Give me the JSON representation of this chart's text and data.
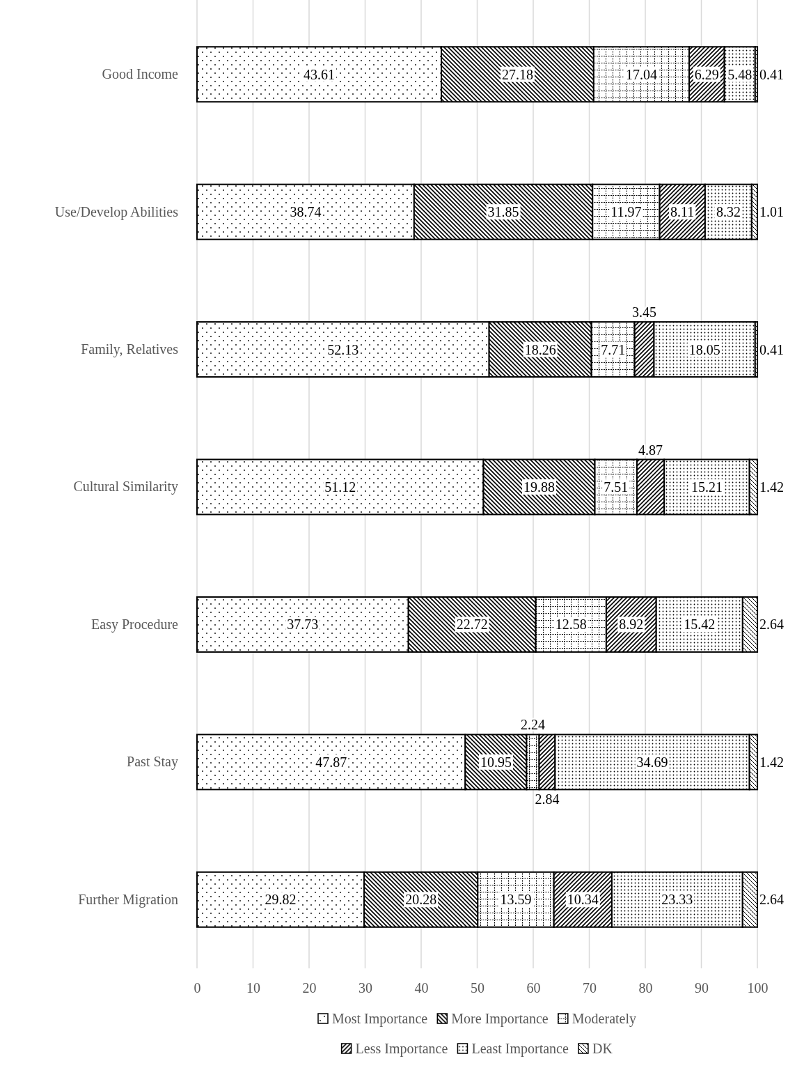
{
  "chart_data": {
    "type": "bar",
    "orientation": "horizontal",
    "stacked": true,
    "categories": [
      "Good Income",
      "Use/Develop Abilities",
      "Family, Relatives",
      "Cultural Similarity",
      "Easy Procedure",
      "Past Stay",
      "Further Migration"
    ],
    "series": [
      {
        "name": "Most Importance",
        "color": "#000000",
        "values": [
          43.61,
          38.74,
          52.13,
          51.12,
          37.73,
          47.87,
          29.82
        ]
      },
      {
        "name": "More Importance",
        "color": "#000000",
        "values": [
          27.18,
          31.85,
          18.26,
          19.88,
          22.72,
          10.95,
          20.28
        ]
      },
      {
        "name": "Moderately",
        "color": "#000000",
        "values": [
          17.04,
          11.97,
          7.71,
          7.51,
          12.58,
          2.24,
          13.59
        ]
      },
      {
        "name": "Less Importance",
        "color": "#000000",
        "values": [
          6.29,
          8.11,
          3.45,
          4.87,
          8.92,
          2.84,
          10.34
        ]
      },
      {
        "name": "Least Importance",
        "color": "#000000",
        "values": [
          5.48,
          8.32,
          18.05,
          15.21,
          15.42,
          34.69,
          23.33
        ]
      },
      {
        "name": "DK",
        "color": "#000000",
        "values": [
          0.41,
          1.01,
          0.41,
          1.42,
          2.64,
          1.42,
          2.64
        ]
      }
    ],
    "xlim": [
      0,
      100
    ],
    "xticks": [
      0,
      10,
      20,
      30,
      40,
      50,
      60,
      70,
      80,
      90,
      100
    ],
    "grid": "x",
    "legend": "bottom",
    "data_labels": true
  }
}
